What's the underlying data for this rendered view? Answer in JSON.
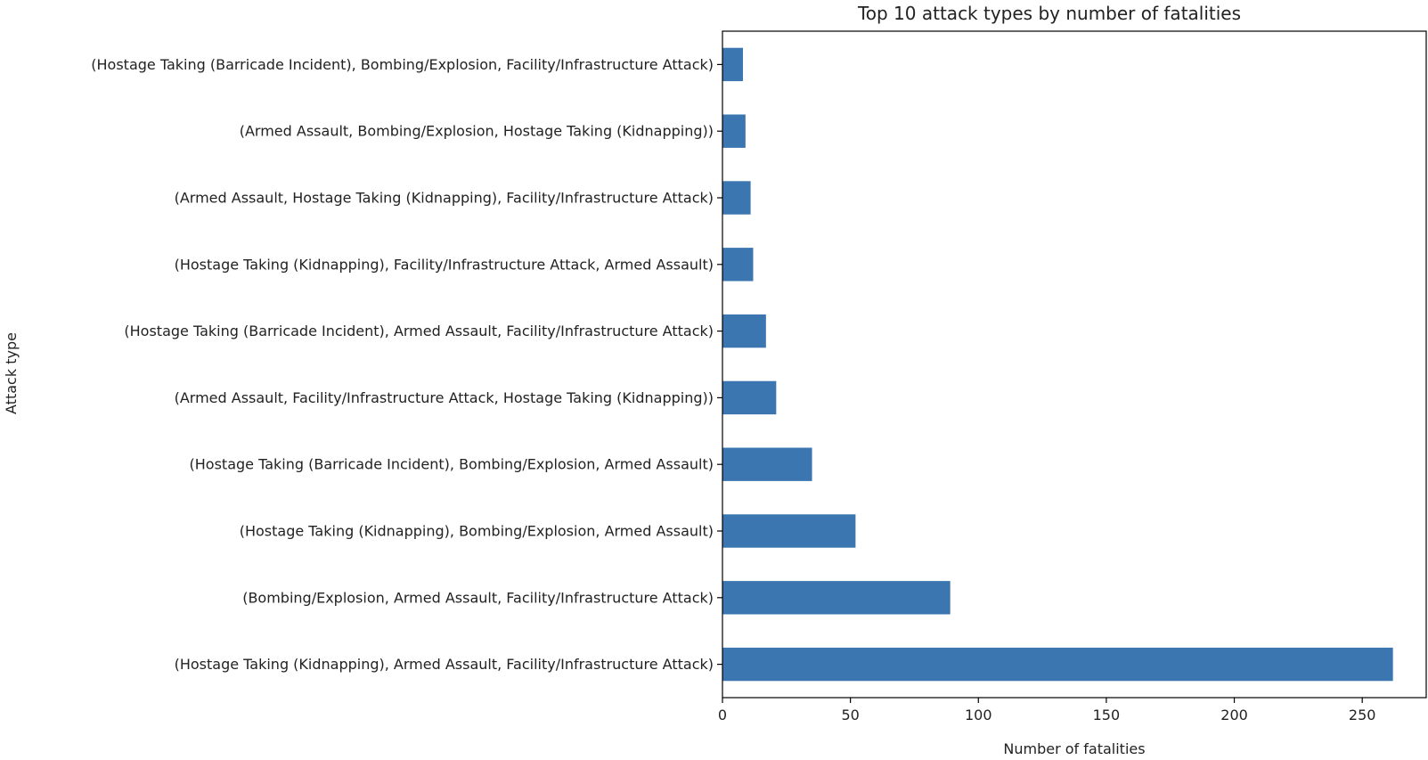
{
  "chart_data": {
    "type": "bar",
    "orientation": "horizontal",
    "title": "Top 10 attack types by number of fatalities",
    "xlabel": "Number of fatalities",
    "ylabel": "Attack type",
    "xlim": [
      0,
      275
    ],
    "xticks": [
      0,
      50,
      100,
      150,
      200,
      250
    ],
    "grid": false,
    "legend": "none",
    "bar_color": "#3b76b0",
    "categories": [
      "(Hostage Taking (Kidnapping), Armed Assault, Facility/Infrastructure Attack)",
      "(Bombing/Explosion, Armed Assault, Facility/Infrastructure Attack)",
      "(Hostage Taking (Kidnapping), Bombing/Explosion, Armed Assault)",
      "(Hostage Taking (Barricade Incident), Bombing/Explosion, Armed Assault)",
      "(Armed Assault, Facility/Infrastructure Attack, Hostage Taking (Kidnapping))",
      "(Hostage Taking (Barricade Incident), Armed Assault, Facility/Infrastructure Attack)",
      "(Hostage Taking (Kidnapping), Facility/Infrastructure Attack, Armed Assault)",
      "(Armed Assault, Hostage Taking (Kidnapping), Facility/Infrastructure Attack)",
      "(Armed Assault, Bombing/Explosion, Hostage Taking (Kidnapping))",
      "(Hostage Taking (Barricade Incident), Bombing/Explosion, Facility/Infrastructure Attack)"
    ],
    "values": [
      262,
      89,
      52,
      35,
      21,
      17,
      12,
      11,
      9,
      8
    ]
  }
}
